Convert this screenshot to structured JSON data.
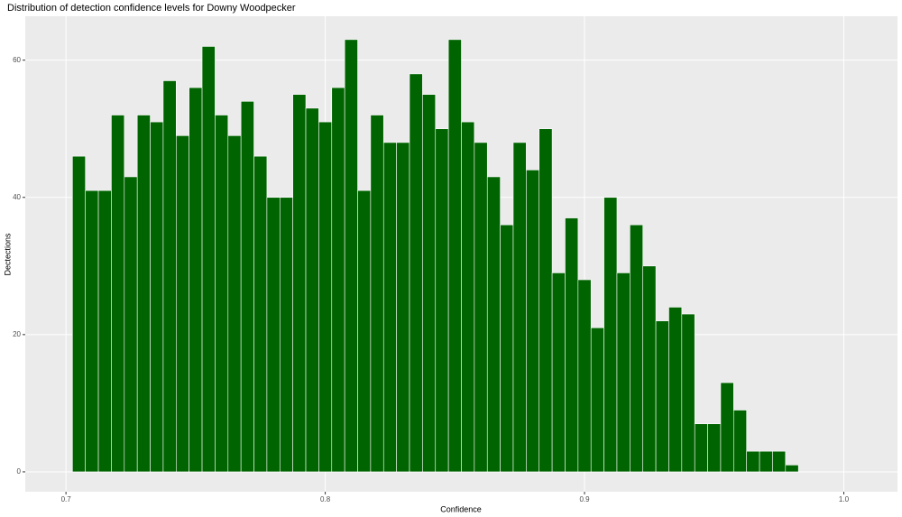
{
  "chart_data": {
    "type": "histogram",
    "title": "Distribution of detection confidence levels for Downy Woodpecker",
    "x_label": "Confidence",
    "y_label": "Dectections",
    "bins": [
      0.7025,
      0.7075,
      0.7125,
      0.7175,
      0.7225,
      0.7275,
      0.7325,
      0.7375,
      0.7425,
      0.7475,
      0.7525,
      0.7575,
      0.7625,
      0.7675,
      0.7725,
      0.7775,
      0.7825,
      0.7875,
      0.7925,
      0.7975,
      0.8025,
      0.8075,
      0.8125,
      0.8175,
      0.8225,
      0.8275,
      0.8325,
      0.8375,
      0.8425,
      0.8475,
      0.8525,
      0.8575,
      0.8625,
      0.8675,
      0.8725,
      0.8775,
      0.8825,
      0.8875,
      0.8925,
      0.8975,
      0.9025,
      0.9075,
      0.9125,
      0.9175,
      0.9225,
      0.9275,
      0.9325,
      0.9375,
      0.9425,
      0.9475,
      0.9525,
      0.9575,
      0.9625,
      0.9675,
      0.9725,
      0.9775,
      0.9825
    ],
    "values": [
      46,
      41,
      41,
      52,
      43,
      52,
      51,
      57,
      49,
      56,
      62,
      52,
      49,
      54,
      46,
      40,
      40,
      55,
      53,
      51,
      56,
      63,
      41,
      52,
      48,
      48,
      58,
      55,
      50,
      63,
      51,
      48,
      43,
      36,
      48,
      44,
      50,
      29,
      37,
      28,
      21,
      40,
      29,
      36,
      30,
      22,
      24,
      23,
      7,
      7,
      13,
      9,
      3,
      3,
      3,
      1
    ],
    "color": "#006400",
    "xlim": [
      0.6843,
      1.0207
    ],
    "xticks": [
      0.7,
      0.8,
      0.9,
      {
        "value": 1,
        "label": "1.0"
      }
    ],
    "ylim": [
      -2.9,
      66.4
    ],
    "yticks": [
      0,
      20,
      40,
      60
    ],
    "grid": true
  }
}
